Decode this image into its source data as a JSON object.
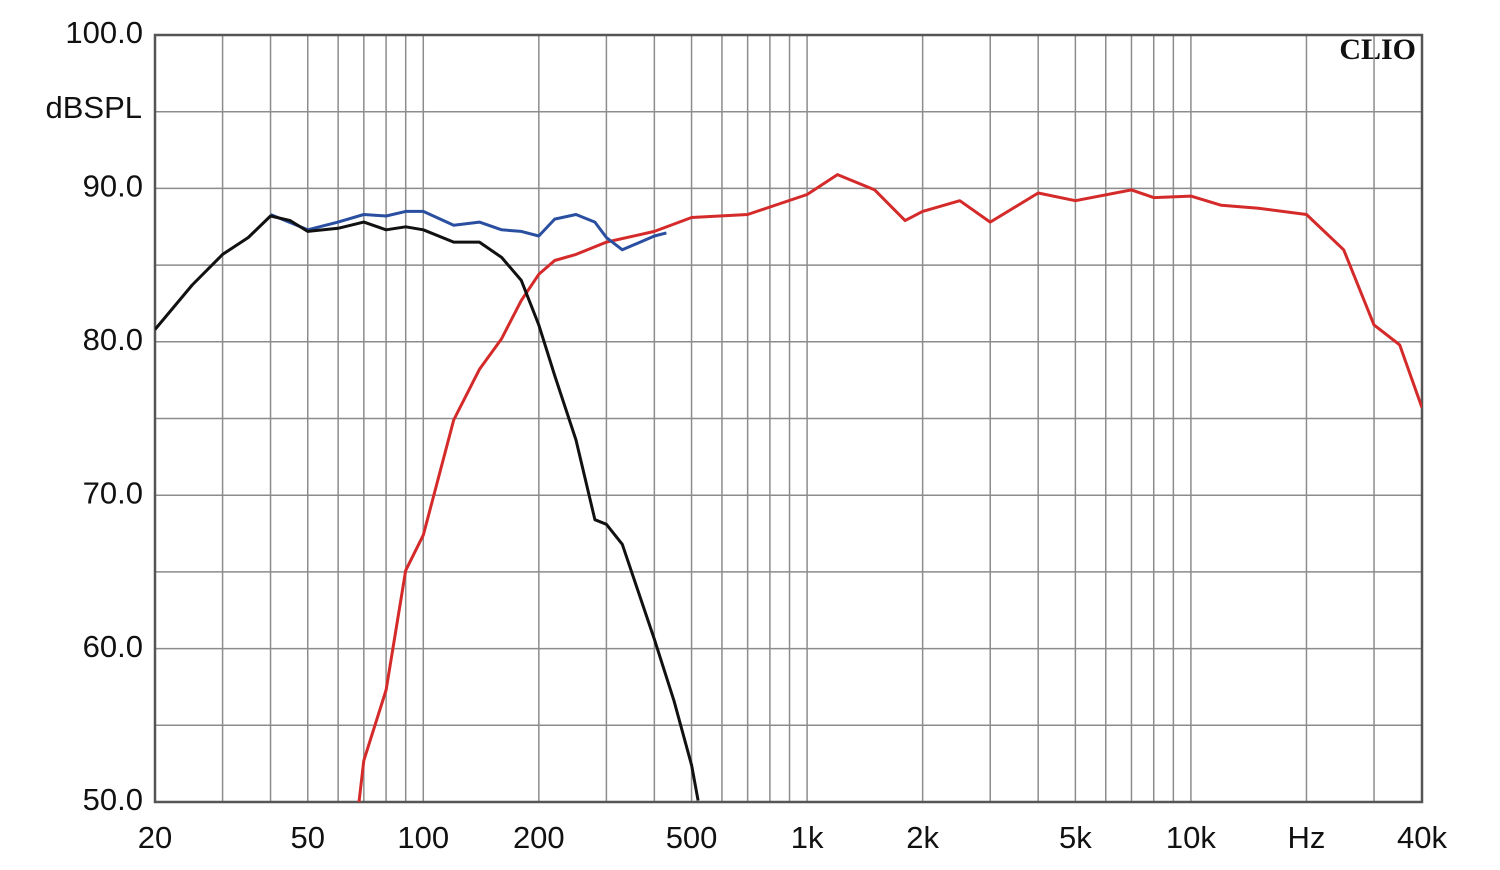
{
  "chart_data": {
    "type": "line",
    "brand": "CLIO",
    "y_label": "dBSPL",
    "xscale": "log",
    "grid": true,
    "xlim": [
      20,
      40000
    ],
    "ylim": [
      50,
      100
    ],
    "xticks": [
      20,
      50,
      100,
      200,
      500,
      {
        "value": 1000,
        "label": "1k"
      },
      {
        "value": 2000,
        "label": "2k"
      },
      {
        "value": 5000,
        "label": "5k"
      },
      {
        "value": 10000,
        "label": "10k"
      },
      {
        "value": 20000,
        "label": "Hz"
      },
      {
        "value": 40000,
        "label": "40k"
      }
    ],
    "xminor": [
      30,
      40,
      60,
      70,
      80,
      90,
      300,
      400,
      600,
      700,
      800,
      900,
      3000,
      4000,
      6000,
      7000,
      8000,
      9000,
      30000
    ],
    "yticks": [
      {
        "value": 50,
        "label": "50.0"
      },
      {
        "value": 60,
        "label": "60.0"
      },
      {
        "value": 70,
        "label": "70.0"
      },
      {
        "value": 80,
        "label": "80.0"
      },
      {
        "value": 90,
        "label": "90.0"
      },
      {
        "value": 100,
        "label": "100.0"
      }
    ],
    "yminor": [
      55,
      65,
      75,
      85,
      95
    ],
    "series": [
      {
        "color": "#d42a2a",
        "x": [
          68,
          70,
          80,
          90,
          100,
          120,
          140,
          160,
          180,
          200,
          220,
          250,
          300,
          400,
          500,
          700,
          1000,
          1200,
          1500,
          1800,
          2000,
          2500,
          3000,
          4000,
          5000,
          7000,
          8000,
          10000,
          12000,
          15000,
          20000,
          25000,
          30000,
          35000,
          40000
        ],
        "values": [
          50.0,
          52.7,
          57.3,
          65.1,
          67.4,
          74.9,
          78.2,
          80.2,
          82.7,
          84.4,
          85.3,
          85.7,
          86.5,
          87.2,
          88.1,
          88.3,
          89.6,
          90.9,
          89.9,
          87.9,
          88.5,
          89.2,
          87.8,
          89.7,
          89.2,
          89.9,
          89.4,
          89.5,
          88.9,
          88.7,
          88.3,
          86.0,
          81.1,
          79.8,
          75.7
        ]
      },
      {
        "color": "#2a4fa0",
        "x": [
          40,
          50,
          60,
          70,
          80,
          90,
          100,
          120,
          140,
          160,
          180,
          200,
          220,
          250,
          280,
          300,
          330,
          400,
          430
        ],
        "values": [
          88.3,
          87.3,
          87.8,
          88.3,
          88.2,
          88.5,
          88.5,
          87.6,
          87.8,
          87.3,
          87.2,
          86.9,
          88.0,
          88.3,
          87.8,
          86.8,
          86.0,
          86.9,
          87.1
        ]
      },
      {
        "color": "#111111",
        "x": [
          20,
          25,
          30,
          35,
          40,
          45,
          50,
          60,
          70,
          80,
          90,
          100,
          120,
          140,
          160,
          180,
          200,
          220,
          250,
          280,
          300,
          330,
          400,
          450,
          500,
          520
        ],
        "values": [
          80.8,
          83.7,
          85.7,
          86.8,
          88.2,
          87.9,
          87.2,
          87.4,
          87.8,
          87.3,
          87.5,
          87.3,
          86.5,
          86.5,
          85.5,
          84.0,
          81.1,
          77.8,
          73.6,
          68.4,
          68.1,
          66.8,
          60.6,
          56.6,
          52.4,
          50.1
        ]
      }
    ]
  }
}
